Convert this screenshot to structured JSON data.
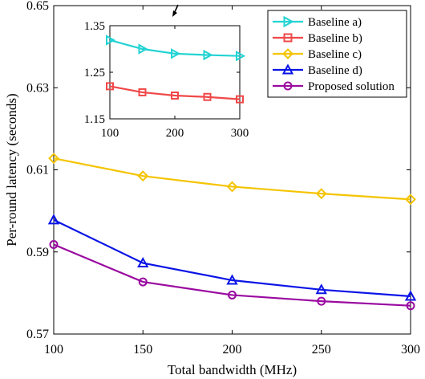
{
  "chart_data": [
    {
      "type": "line",
      "x": [
        100,
        150,
        200,
        250,
        300
      ],
      "xlabel": "Total bandwidth (MHz)",
      "ylabel": "Per-round latency (seconds)",
      "xlim": [
        100,
        300
      ],
      "ylim": [
        0.57,
        0.65
      ],
      "xticks": [
        100,
        150,
        200,
        250,
        300
      ],
      "yticks": [
        0.57,
        0.59,
        0.61,
        0.63,
        0.65
      ],
      "ytick_labels": [
        "0.57",
        "0.59",
        "0.61",
        "0.63",
        "0.65"
      ],
      "grid": false,
      "legend_position": "top-right",
      "series": [
        {
          "name": "Baseline c)",
          "color": "#f5c400",
          "marker": "diamond",
          "values": [
            0.6128,
            0.6085,
            0.6059,
            0.6042,
            0.6028
          ]
        },
        {
          "name": "Baseline d)",
          "color": "#0a14e6",
          "marker": "triangle-up",
          "values": [
            0.5978,
            0.5873,
            0.5831,
            0.5808,
            0.5792
          ]
        },
        {
          "name": "Proposed solution",
          "color": "#9a0aa0",
          "marker": "circle",
          "values": [
            0.5918,
            0.5827,
            0.5795,
            0.578,
            0.5769
          ]
        }
      ]
    },
    {
      "type": "line",
      "role": "inset",
      "x": [
        100,
        150,
        200,
        250,
        300
      ],
      "xlim": [
        100,
        300
      ],
      "ylim": [
        1.15,
        1.35
      ],
      "xticks": [
        100,
        200,
        300
      ],
      "yticks": [
        1.15,
        1.25,
        1.35
      ],
      "ytick_labels": [
        "1.15",
        "1.25",
        "1.35"
      ],
      "grid": false,
      "series": [
        {
          "name": "Baseline a)",
          "color": "#22d3d3",
          "marker": "triangle-right",
          "values": [
            1.319,
            1.3,
            1.29,
            1.287,
            1.285
          ]
        },
        {
          "name": "Baseline b)",
          "color": "#f04848",
          "marker": "square",
          "values": [
            1.22,
            1.207,
            1.2,
            1.197,
            1.192
          ]
        }
      ]
    }
  ],
  "legend": {
    "entries": [
      {
        "label": "Baseline a)",
        "color": "#22d3d3",
        "marker": "triangle-right"
      },
      {
        "label": "Baseline b)",
        "color": "#f04848",
        "marker": "square"
      },
      {
        "label": "Baseline c)",
        "color": "#f5c400",
        "marker": "diamond"
      },
      {
        "label": "Baseline d)",
        "color": "#0a14e6",
        "marker": "triangle-up"
      },
      {
        "label": "Proposed solution",
        "color": "#9a0aa0",
        "marker": "circle"
      }
    ]
  }
}
